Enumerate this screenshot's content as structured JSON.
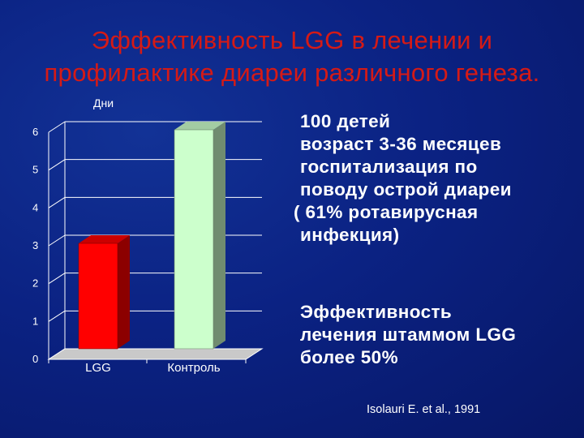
{
  "slide": {
    "title_line1": "Эффективность LGG в лечении и",
    "title_line2": "профилактике диареи различного генеза.",
    "info_lines": [
      "100 детей",
      "возраст 3-36 месяцев",
      "госпитализация по",
      "поводу острой диареи",
      "( 61% ротавирусная",
      "инфекция)"
    ],
    "effect_lines": [
      "Эффективность",
      "лечения штаммом LGG",
      "более 50%"
    ],
    "citation": "Isolauri E. et al., 1991"
  },
  "chart_data": {
    "type": "bar",
    "ylabel": "Дни",
    "categories": [
      "LGG",
      "Контроль"
    ],
    "values": [
      3,
      6
    ],
    "ylim": [
      0,
      6
    ],
    "yticks": [
      "0",
      "1",
      "2",
      "3",
      "4",
      "5",
      "6"
    ],
    "bar_colors": [
      "#ff0000",
      "#ccffcc"
    ],
    "grid": true,
    "three_d": true
  }
}
